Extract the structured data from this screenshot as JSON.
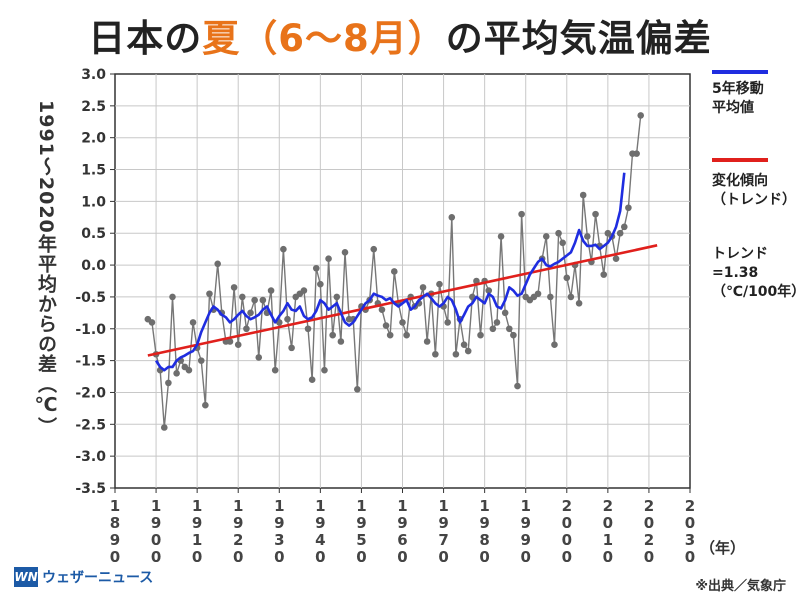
{
  "title": {
    "part1": "日本の",
    "highlight": "夏（6～8月）",
    "part2": "の平均気温偏差"
  },
  "legend": {
    "moving_avg_label": "5年移動\n平均値",
    "trend_label": "変化傾向\n（トレンド）",
    "trend_value": "トレンド\n=1.38\n（℃/100年）",
    "colors": {
      "moving_avg": "#1f2de0",
      "trend": "#e0201c",
      "annual": "#777777"
    }
  },
  "logo": {
    "mark": "WN",
    "text": "ウェザーニュース"
  },
  "source": "※出典／気象庁",
  "unit_label": "（年）",
  "chart_data": {
    "type": "line",
    "ylabel": "1991～2020年平均からの差（℃）",
    "xlabel": "",
    "xlim": [
      1890,
      2030
    ],
    "ylim": [
      -3.5,
      3.0
    ],
    "x_ticks": [
      1890,
      1900,
      1910,
      1920,
      1930,
      1940,
      1950,
      1960,
      1970,
      1980,
      1990,
      2000,
      2010,
      2020,
      2030
    ],
    "y_ticks": [
      "3.0",
      "2.5",
      "2.0",
      "1.5",
      "1.0",
      "0.5",
      "0.0",
      "-0.5",
      "-1.0",
      "-1.5",
      "-2.0",
      "-2.5",
      "-3.0",
      "-3.5"
    ],
    "grid": true,
    "series": [
      {
        "name": "annual",
        "x_start": 1898,
        "values": [
          -0.85,
          -0.9,
          -1.4,
          -1.65,
          -2.55,
          -1.85,
          -0.5,
          -1.7,
          -1.5,
          -1.6,
          -1.65,
          -0.9,
          -1.3,
          -1.5,
          -2.2,
          -0.45,
          -0.7,
          0.02,
          -0.75,
          -1.2,
          -1.2,
          -0.35,
          -1.25,
          -0.5,
          -1.0,
          -0.75,
          -0.55,
          -1.45,
          -0.55,
          -0.75,
          -0.4,
          -1.65,
          -0.9,
          0.25,
          -0.85,
          -1.3,
          -0.5,
          -0.45,
          -0.4,
          -1.0,
          -1.8,
          -0.05,
          -0.3,
          -1.65,
          0.1,
          -1.1,
          -0.5,
          -1.2,
          0.2,
          -0.85,
          -0.85,
          -1.95,
          -0.65,
          -0.7,
          -0.55,
          0.25,
          -0.6,
          -0.7,
          -0.95,
          -1.1,
          -0.1,
          -0.6,
          -0.9,
          -1.1,
          -0.5,
          -0.65,
          -0.6,
          -0.35,
          -1.2,
          -0.45,
          -1.4,
          -0.3,
          -0.65,
          -0.9,
          0.75,
          -1.4,
          -0.85,
          -1.25,
          -1.35,
          -0.5,
          -0.25,
          -1.1,
          -0.25,
          -0.4,
          -1.0,
          -0.9,
          0.45,
          -0.75,
          -1.0,
          -1.1,
          -1.9,
          0.8,
          -0.5,
          -0.55,
          -0.5,
          -0.45,
          0.1,
          0.45,
          -0.5,
          -1.25,
          0.5,
          0.35,
          -0.2,
          -0.5,
          0.0,
          -0.6,
          1.1,
          0.45,
          0.05,
          0.8,
          0.3,
          -0.15,
          0.5,
          0.45,
          0.1,
          0.5,
          0.6,
          0.9,
          1.75,
          1.75,
          2.35
        ]
      },
      {
        "name": "5年移動平均値",
        "x_start": 1900,
        "values": [
          -1.5,
          -1.6,
          -1.65,
          -1.6,
          -1.6,
          -1.5,
          -1.45,
          -1.42,
          -1.38,
          -1.35,
          -1.25,
          -1.05,
          -0.9,
          -0.75,
          -0.65,
          -0.7,
          -0.78,
          -0.82,
          -0.9,
          -0.85,
          -0.78,
          -0.72,
          -0.8,
          -0.85,
          -0.82,
          -0.78,
          -0.7,
          -0.65,
          -0.78,
          -0.9,
          -0.8,
          -0.72,
          -0.6,
          -0.7,
          -0.72,
          -0.65,
          -0.8,
          -0.85,
          -0.82,
          -0.72,
          -0.55,
          -0.6,
          -0.7,
          -0.65,
          -0.6,
          -0.75,
          -0.9,
          -0.95,
          -0.9,
          -0.8,
          -0.7,
          -0.6,
          -0.55,
          -0.45,
          -0.48,
          -0.5,
          -0.55,
          -0.52,
          -0.6,
          -0.65,
          -0.6,
          -0.55,
          -0.7,
          -0.65,
          -0.55,
          -0.5,
          -0.45,
          -0.52,
          -0.6,
          -0.65,
          -0.6,
          -0.5,
          -0.55,
          -0.7,
          -0.9,
          -0.78,
          -0.65,
          -0.6,
          -0.5,
          -0.55,
          -0.6,
          -0.45,
          -0.5,
          -0.65,
          -0.68,
          -0.55,
          -0.35,
          -0.4,
          -0.48,
          -0.45,
          -0.3,
          -0.15,
          -0.05,
          0.05,
          0.1,
          0.0,
          -0.02,
          0.02,
          0.05,
          0.1,
          0.15,
          0.2,
          0.35,
          0.55,
          0.38,
          0.3,
          0.3,
          0.32,
          0.25,
          0.3,
          0.35,
          0.45,
          0.6,
          0.85,
          1.45
        ]
      },
      {
        "name": "変化傾向",
        "x": [
          1898,
          2022
        ],
        "values": [
          -1.42,
          0.31
        ]
      }
    ]
  }
}
